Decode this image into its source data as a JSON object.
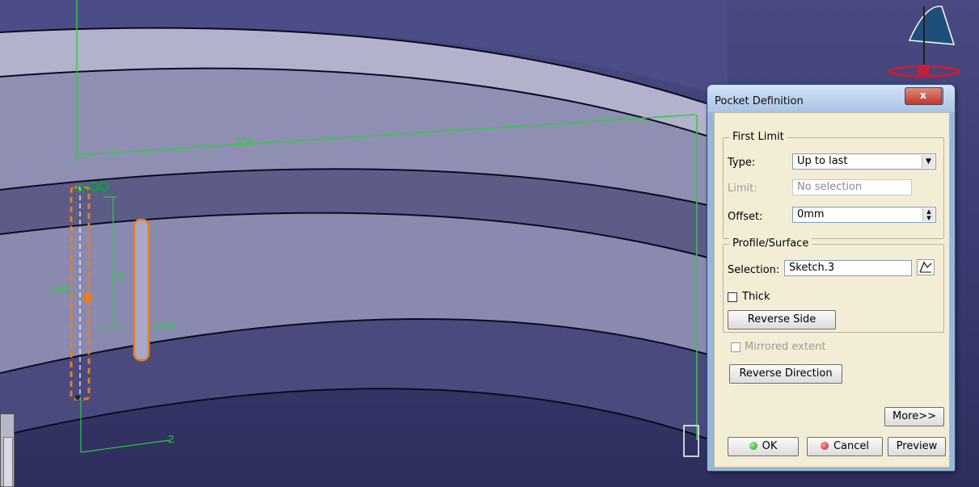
{
  "viewport": {
    "dimension_200": "200",
    "dimension_40": "40",
    "dimension_2": "2",
    "label_lim1": "LIM1",
    "label_lim2": "LIM2"
  },
  "dialog": {
    "title": "Pocket Definition",
    "help_label": "?",
    "close_label": "x",
    "first_limit": {
      "legend": "First Limit",
      "type_label": "Type:",
      "type_value": "Up to last",
      "limit_label": "Limit:",
      "limit_value": "No selection",
      "offset_label": "Offset:",
      "offset_value": "0mm"
    },
    "profile": {
      "legend": "Profile/Surface",
      "selection_label": "Selection:",
      "selection_value": "Sketch.3",
      "thick_label": "Thick",
      "reverse_side_label": "Reverse Side"
    },
    "mirrored_label": "Mirrored extent",
    "reverse_direction_label": "Reverse Direction",
    "more_label": "More>>",
    "ok_label": "OK",
    "cancel_label": "Cancel",
    "preview_label": "Preview"
  },
  "colors": {
    "background": "#3d3d74",
    "part_face": "#8a8ab0",
    "dimension_green": "#2ecc40",
    "sketch_orange": "#e67e22",
    "dialog_client": "#f4edd6"
  }
}
